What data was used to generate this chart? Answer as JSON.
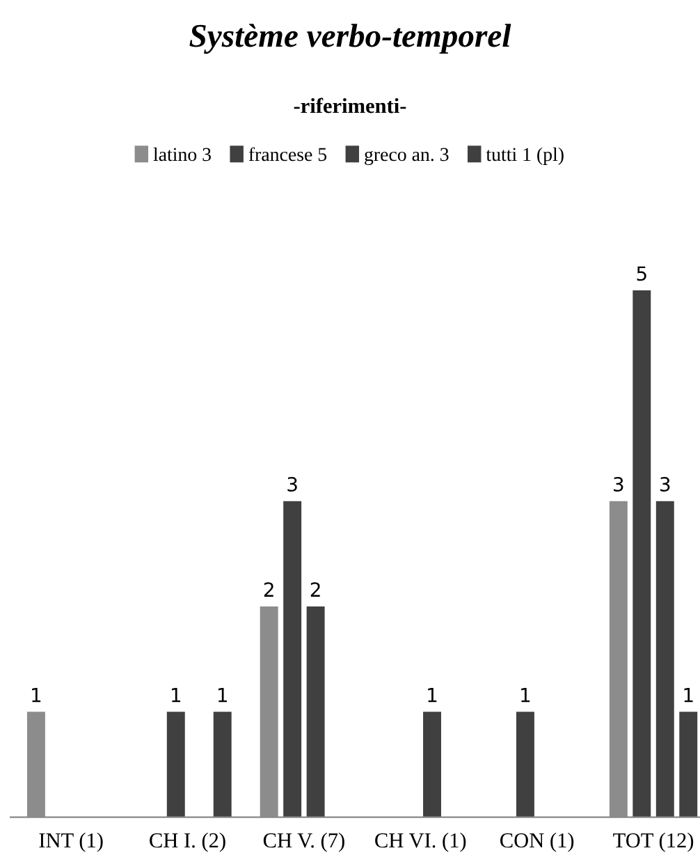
{
  "chart_data": {
    "type": "bar",
    "title": "Système verbo-temporel",
    "subtitle": "-riferimenti-",
    "categories": [
      "INT (1)",
      "CH I. (2)",
      "CH V. (7)",
      "CH VI. (1)",
      "CON (1)",
      "TOT (12)"
    ],
    "series": [
      {
        "name": "latino 3",
        "color": "#8c8c8c",
        "values": [
          1,
          null,
          2,
          null,
          null,
          3
        ]
      },
      {
        "name": "francese 5",
        "color": "#404040",
        "values": [
          null,
          1,
          3,
          null,
          1,
          5
        ]
      },
      {
        "name": "greco an. 3",
        "color": "#404040",
        "values": [
          null,
          null,
          2,
          1,
          null,
          3
        ]
      },
      {
        "name": "tutti 1 (pl)",
        "color": "#404040",
        "values": [
          null,
          1,
          null,
          null,
          null,
          1
        ]
      }
    ],
    "data_labels": true,
    "legend": "top"
  }
}
